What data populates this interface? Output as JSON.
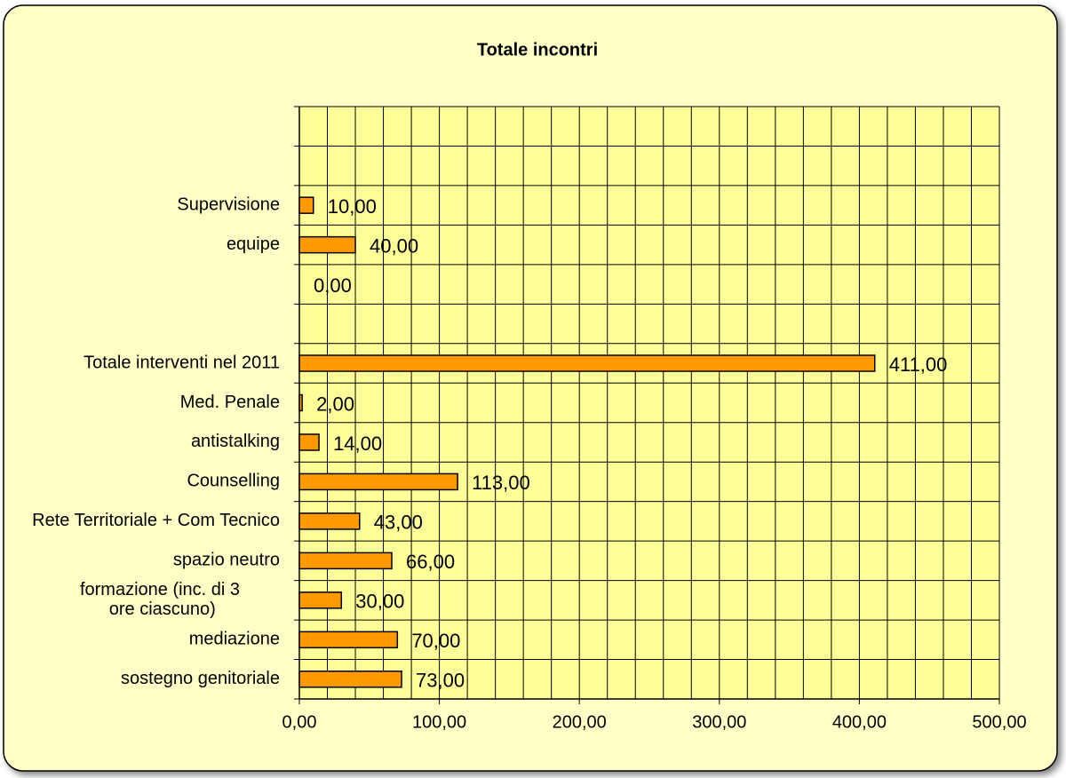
{
  "chart_data": {
    "type": "barh",
    "title": "Totale incontri",
    "categories": [
      "sostegno genitoriale",
      "mediazione",
      "formazione (inc. di 3 ore ciascuno)",
      "spazio neutro",
      "Rete Territoriale + Com Tecnico",
      "Counselling",
      "antistalking",
      "Med. Penale",
      "Totale interventi nel 2011",
      null,
      null,
      "equipe",
      "Supervisione",
      null,
      null
    ],
    "values": [
      73,
      70,
      30,
      66,
      43,
      113,
      14,
      2,
      411,
      null,
      0,
      40,
      10,
      null,
      null
    ],
    "value_labels": [
      "73,00",
      "70,00",
      "30,00",
      "66,00",
      "43,00",
      "113,00",
      "14,00",
      "2,00",
      "411,00",
      null,
      "0,00",
      "40,00",
      "10,00",
      null,
      null
    ],
    "color": "#ff9900",
    "xlim": [
      0,
      500
    ],
    "xticks": [
      {
        "value": 0,
        "label": "0,00"
      },
      {
        "value": 100,
        "label": "100,00"
      },
      {
        "value": 200,
        "label": "200,00"
      },
      {
        "value": 300,
        "label": "300,00"
      },
      {
        "value": 400,
        "label": "400,00"
      },
      {
        "value": 500,
        "label": "500,00"
      }
    ],
    "xgrid": [
      0,
      20,
      40,
      60,
      80,
      100,
      120,
      140,
      160,
      180,
      200,
      220,
      240,
      260,
      280,
      300,
      320,
      340,
      360,
      380,
      400,
      420,
      440,
      460,
      480,
      500
    ],
    "grid": true
  }
}
